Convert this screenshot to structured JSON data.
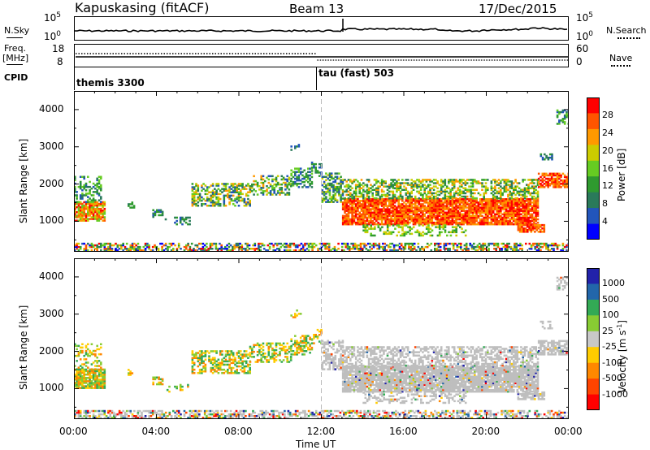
{
  "header": {
    "station": "Kapuskasing (fitACF)",
    "beam": "Beam 13",
    "date": "17/Dec/2015"
  },
  "left_labels": {
    "nsky": "N.Sky",
    "freq": "Freq.",
    "freq_unit": "[MHz]",
    "cpid": "CPID"
  },
  "right_labels": {
    "nsearch": "N.Search",
    "nave": "Nave"
  },
  "noise_axis": {
    "left_top": "10^5",
    "left_bottom": "10^0",
    "right_top": "10^5",
    "right_bottom": "10^0"
  },
  "freq_axis": {
    "left_top": "18",
    "left_bottom": "8",
    "right_top": "60",
    "right_bottom": "0"
  },
  "cpid": {
    "before": "themis 3300",
    "after": "tau (fast) 503"
  },
  "colors": {
    "power_scale": [
      "#0000ff",
      "#2255bb",
      "#2a7a5a",
      "#2f9a2f",
      "#66cc22",
      "#cccc00",
      "#ff9900",
      "#ff5500",
      "#ff0000"
    ],
    "velocity_scale": [
      "#2222aa",
      "#2266aa",
      "#33aa55",
      "#88cc33",
      "#c8c8c8",
      "#ffcc00",
      "#ff8800",
      "#ff4400",
      "#ff0000"
    ],
    "ground_scatter": "#bebebe"
  },
  "chart_data": [
    {
      "type": "heatmap",
      "name": "power",
      "ylabel": "Slant Range [km]",
      "ylim": [
        180,
        4500
      ],
      "yticks": [
        1000,
        2000,
        3000,
        4000
      ],
      "xlim_hours": [
        0,
        24
      ],
      "xticks": [
        "00:00",
        "04:00",
        "08:00",
        "12:00",
        "16:00",
        "20:00",
        "00:00"
      ],
      "colorbar": {
        "label": "Power [dB]",
        "ticks": [
          "4",
          "8",
          "12",
          "16",
          "20",
          "24",
          "28"
        ],
        "range": [
          0,
          30
        ]
      }
    },
    {
      "type": "heatmap",
      "name": "velocity",
      "ylabel": "Slant Range [km]",
      "ylim": [
        180,
        4500
      ],
      "yticks": [
        1000,
        2000,
        3000,
        4000
      ],
      "xlim_hours": [
        0,
        24
      ],
      "xticks": [
        "00:00",
        "04:00",
        "08:00",
        "12:00",
        "16:00",
        "20:00",
        "00:00"
      ],
      "xlabel": "Time UT",
      "colorbar": {
        "label": "Velocity [m s^-1]",
        "ticks": [
          "1000",
          "500",
          "100",
          "25",
          "-25",
          "-100",
          "-500",
          "-1000"
        ]
      }
    }
  ]
}
